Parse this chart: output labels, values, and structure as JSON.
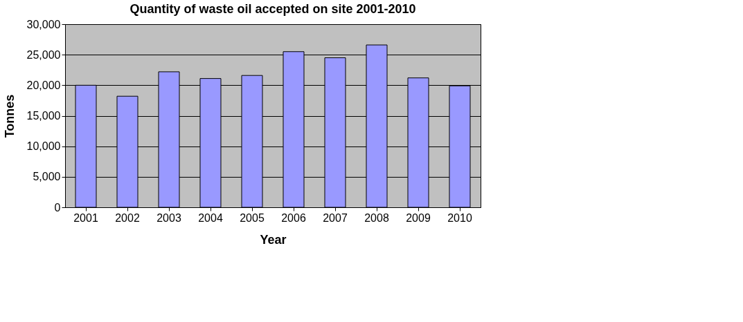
{
  "chart_data": {
    "type": "bar",
    "title": "Quantity of waste oil accepted on site 2001-2010",
    "xlabel": "Year",
    "ylabel": "Tonnes",
    "categories": [
      "2001",
      "2002",
      "2003",
      "2004",
      "2005",
      "2006",
      "2007",
      "2008",
      "2009",
      "2010"
    ],
    "values": [
      20000,
      18200,
      22200,
      21100,
      21600,
      25500,
      24500,
      26600,
      21200,
      19900
    ],
    "color": "#9999ff",
    "ylim": [
      0,
      30000
    ],
    "yticks": [
      {
        "value": 0,
        "label": "0"
      },
      {
        "value": 5000,
        "label": "5,000"
      },
      {
        "value": 10000,
        "label": "10,000"
      },
      {
        "value": 15000,
        "label": "15,000"
      },
      {
        "value": 20000,
        "label": "20,000"
      },
      {
        "value": 25000,
        "label": "25,000"
      },
      {
        "value": 30000,
        "label": "30,000"
      }
    ],
    "grid": "y"
  }
}
